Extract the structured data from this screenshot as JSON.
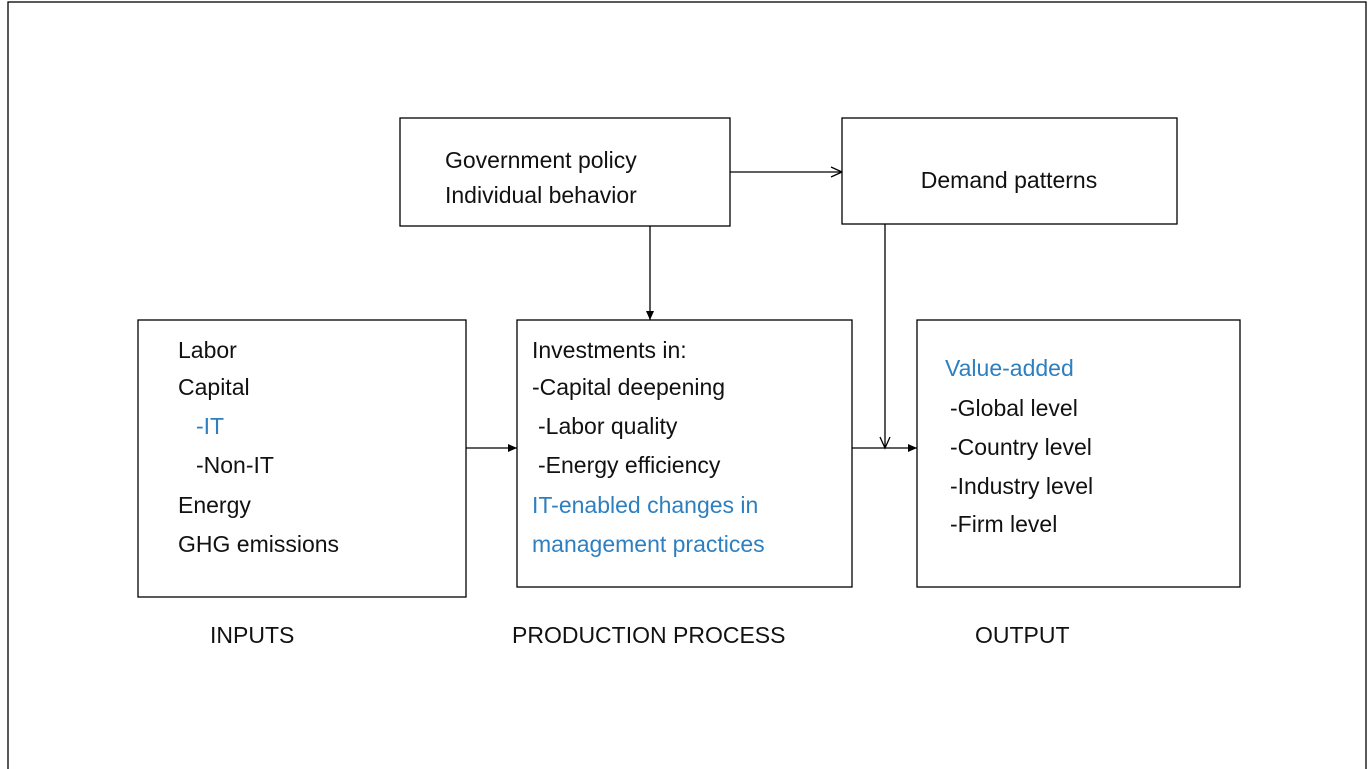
{
  "nodes": [
    {
      "lines": [
        "Government policy",
        "Individual behavior"
      ]
    },
    {
      "lines": [
        "Demand patterns"
      ]
    },
    {
      "lines": [
        "Labor",
        "Capital",
        "-IT",
        "-Non-IT",
        "Energy",
        "GHG emissions"
      ],
      "label": "INPUTS"
    },
    {
      "lines": [
        "Investments in:",
        "-Capital deepening",
        "-Labor quality",
        "-Energy efficiency",
        "IT-enabled changes in",
        "management practices"
      ],
      "label": "PRODUCTION PROCESS"
    },
    {
      "lines": [
        "Value-added",
        "-Global level",
        "-Country level",
        "-Industry level",
        "-Firm level"
      ],
      "label": "OUTPUT"
    }
  ]
}
